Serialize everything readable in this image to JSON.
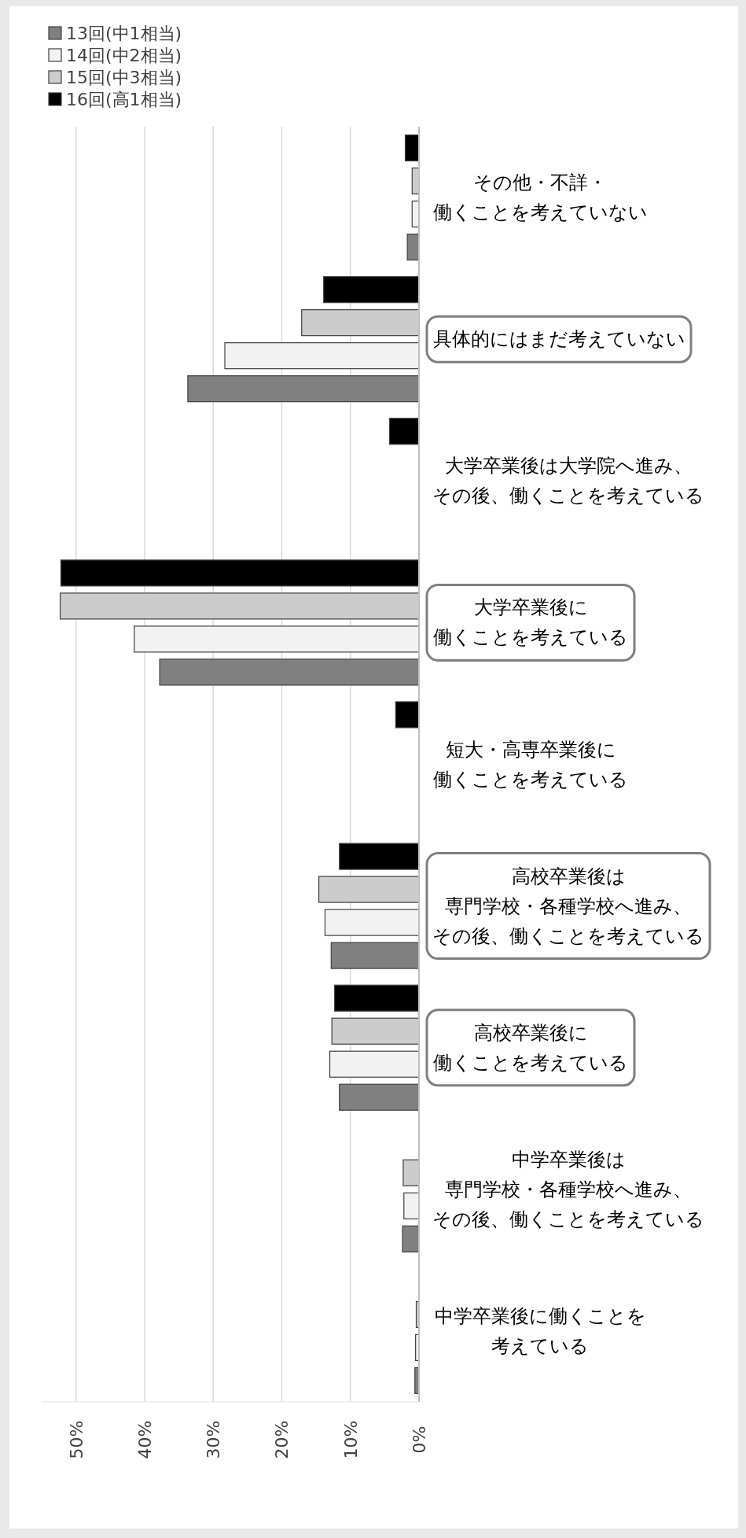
{
  "chart_data": {
    "type": "bar",
    "orientation": "horizontal",
    "categories": [
      "その他・不詳・働くことを考えていない",
      "具体的にはまだ考えていない",
      "大学卒業後は大学院へ進み、その後、働くことを考えている",
      "大学卒業後に働くことを考えている",
      "短大・高専卒業後に働くことを考えている",
      "高校卒業後は専門学校・各種学校へ進み、その後、働くことを考えている",
      "高校卒業後に働くことを考えている",
      "中学卒業後は専門学校・各種学校へ進み、その後、働くことを考えている",
      "中学卒業後に働くことを考えている"
    ],
    "series": [
      {
        "name": "13回(中1相当)",
        "color": "#808080",
        "values": [
          1.7,
          33.7,
          null,
          37.8,
          null,
          12.8,
          11.6,
          2.4,
          0.6
        ]
      },
      {
        "name": "14回(中2相当)",
        "color": "#f2f2f2",
        "values": [
          1.0,
          28.3,
          null,
          41.5,
          null,
          13.7,
          13.0,
          2.2,
          0.5
        ]
      },
      {
        "name": "15回(中3相当)",
        "color": "#cccccc",
        "values": [
          1.0,
          17.1,
          null,
          52.3,
          null,
          14.6,
          12.7,
          2.3,
          0.4
        ]
      },
      {
        "name": "16回(高1相当)",
        "color": "#000000",
        "values": [
          2.0,
          13.9,
          4.3,
          52.2,
          3.4,
          11.6,
          12.3,
          null,
          null
        ]
      }
    ],
    "xlim": [
      55,
      0
    ],
    "xticks": [
      {
        "value": 50,
        "label": "50%"
      },
      {
        "value": 40,
        "label": "40%"
      },
      {
        "value": 30,
        "label": "30%"
      },
      {
        "value": 20,
        "label": "20%"
      },
      {
        "value": 10,
        "label": "10%"
      },
      {
        "value": 0,
        "label": "0%"
      }
    ],
    "grid": "x",
    "legend": "top left"
  }
}
